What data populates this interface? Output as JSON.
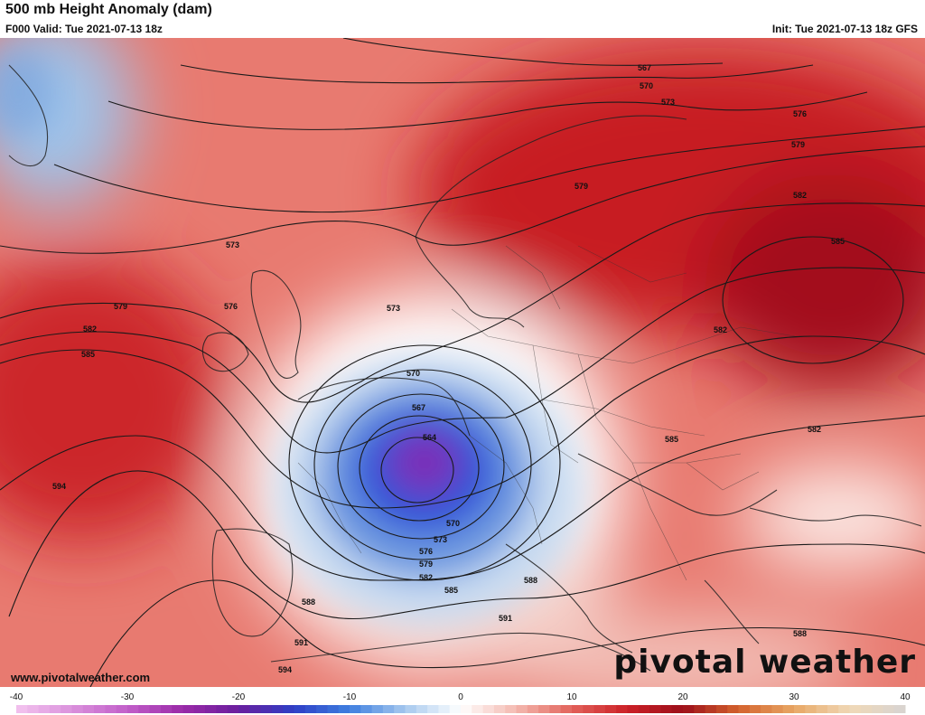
{
  "header": {
    "title": "500 mb Height Anomaly (dam)",
    "valid": "F000 Valid: Tue 2021-07-13 18z",
    "init": "Init: Tue 2021-07-13 18z GFS"
  },
  "footer": {
    "website": "www.pivotalweather.com",
    "brand": "pivotal weather"
  },
  "colorbar": {
    "min": -40,
    "max": 40,
    "tick_labels": [
      "-40",
      "-30",
      "-20",
      "-10",
      "0",
      "10",
      "20",
      "30",
      "40"
    ],
    "tick_values": [
      -40,
      -30,
      -20,
      -10,
      0,
      10,
      20,
      30,
      40
    ]
  },
  "contour_labels": [
    "567",
    "570",
    "573",
    "576",
    "579",
    "582",
    "585",
    "588",
    "591",
    "594",
    "564"
  ],
  "colors": {
    "neg_strong": "#7a2fb8",
    "neg_mid": "#2f55d8",
    "neg_light": "#b9d3ef",
    "neutral": "#ffffff",
    "pos_light": "#f2b9b0",
    "pos_mid": "#d83a36",
    "pos_strong": "#a3101a"
  }
}
